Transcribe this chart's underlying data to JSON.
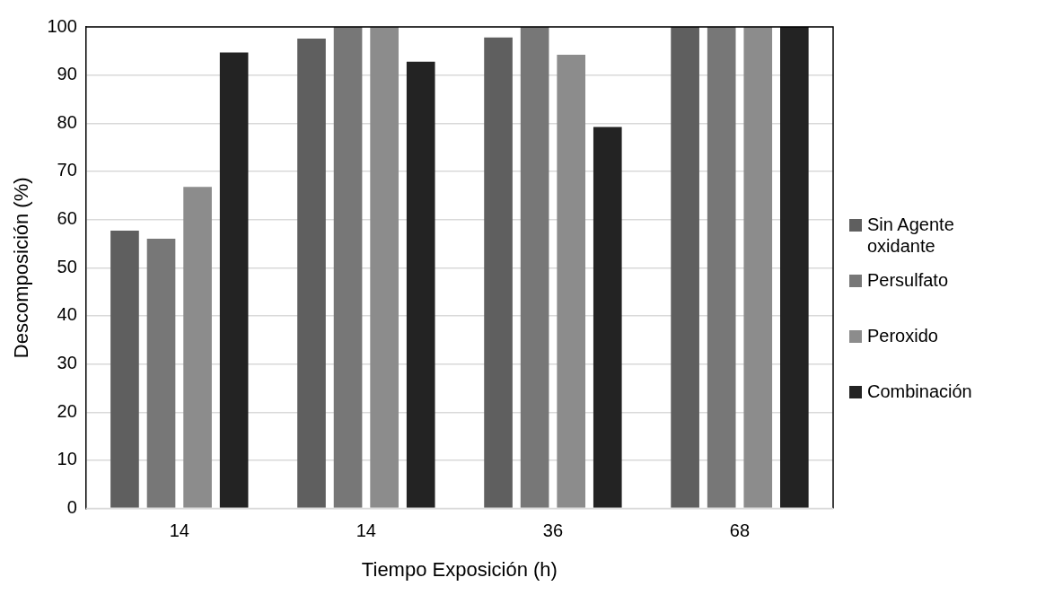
{
  "chart_data": {
    "type": "bar",
    "xlabel": "Tiempo Exposición (h)",
    "ylabel": "Descomposición (%)",
    "categories": [
      "14",
      "14",
      "36",
      "68"
    ],
    "series": [
      {
        "name": "Sin Agente oxidante",
        "color": "#5f5f5f",
        "values": [
          57.7,
          97.6,
          97.8,
          100
        ]
      },
      {
        "name": "Persulfato",
        "color": "#777777",
        "values": [
          56,
          100,
          100,
          100
        ]
      },
      {
        "name": "Peroxido",
        "color": "#8c8c8c",
        "values": [
          66.8,
          100,
          94.2,
          100
        ]
      },
      {
        "name": "Combinación",
        "color": "#232323",
        "values": [
          94.7,
          92.8,
          79.2,
          100
        ]
      }
    ],
    "ylim": [
      0,
      100
    ],
    "yticks": [
      0,
      10,
      20,
      30,
      40,
      50,
      60,
      70,
      80,
      90,
      100
    ],
    "grid": "y",
    "legend": "right"
  }
}
